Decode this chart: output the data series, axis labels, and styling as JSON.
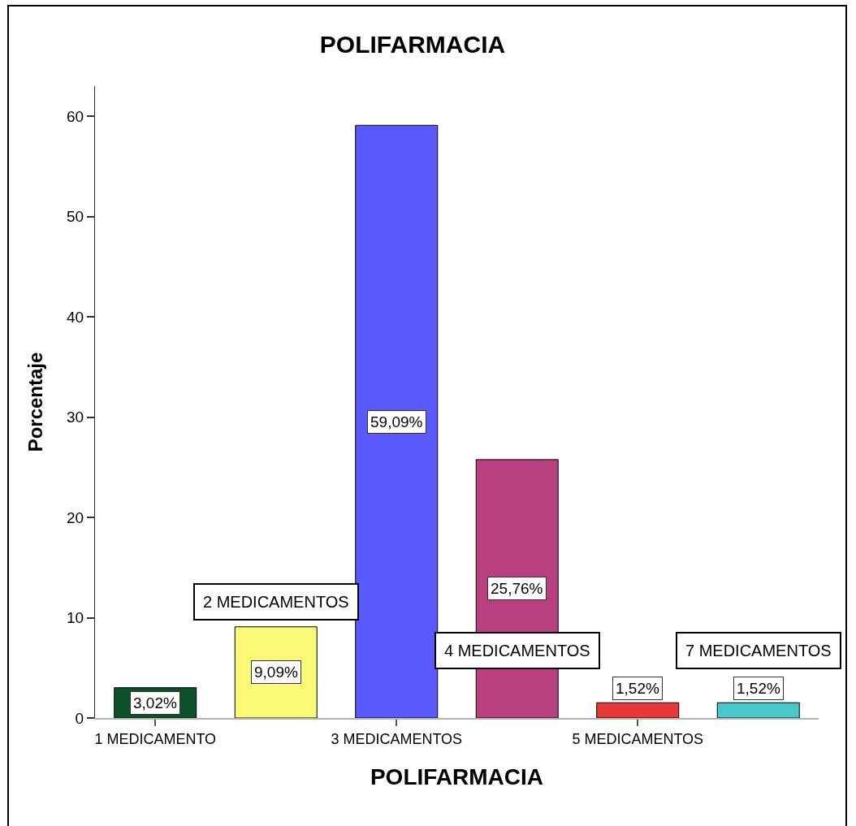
{
  "chart_data": {
    "type": "bar",
    "title": "POLIFARMACIA",
    "xlabel": "POLIFARMACIA",
    "ylabel": "Porcentaje",
    "categories": [
      "1 MEDICAMENTO",
      null,
      "3 MEDICAMENTOS",
      null,
      "5 MEDICAMENTOS",
      null
    ],
    "values": [
      3.02,
      9.09,
      59.09,
      25.76,
      1.52,
      1.52
    ],
    "colors": [
      "#0a5028",
      "#fafa78",
      "#5a5aff",
      "#b8407f",
      "#e83838",
      "#48c8c8"
    ],
    "value_labels": [
      "3,02%",
      "9,09%",
      "59,09%",
      "25,76%",
      "1,52%",
      "1,52%"
    ],
    "annotations": [
      "2 MEDICAMENTOS",
      "4 MEDICAMENTOS",
      "7 MEDICAMENTOS"
    ],
    "ylim": [
      0,
      63
    ],
    "yticks": [
      0,
      10,
      20,
      30,
      40,
      50,
      60
    ]
  }
}
